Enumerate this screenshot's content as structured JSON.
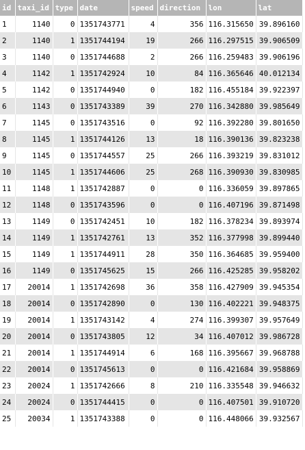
{
  "columns": [
    {
      "key": "id",
      "label": "id",
      "align": "left"
    },
    {
      "key": "taxi_id",
      "label": "taxi_id",
      "align": "right"
    },
    {
      "key": "type",
      "label": "type",
      "align": "right"
    },
    {
      "key": "date",
      "label": "date",
      "align": "left"
    },
    {
      "key": "speed",
      "label": "speed",
      "align": "right"
    },
    {
      "key": "direction",
      "label": "direction",
      "align": "right"
    },
    {
      "key": "lon",
      "label": "lon",
      "align": "right"
    },
    {
      "key": "lat",
      "label": "lat",
      "align": "right"
    }
  ],
  "rows": [
    [
      "1",
      "1140",
      "0",
      "1351743771",
      "4",
      "356",
      "116.315650",
      "39.896160"
    ],
    [
      "2",
      "1140",
      "1",
      "1351744194",
      "19",
      "266",
      "116.297515",
      "39.906509"
    ],
    [
      "3",
      "1140",
      "0",
      "1351744688",
      "2",
      "266",
      "116.259483",
      "39.906196"
    ],
    [
      "4",
      "1142",
      "1",
      "1351742924",
      "10",
      "84",
      "116.365646",
      "40.012134"
    ],
    [
      "5",
      "1142",
      "0",
      "1351744940",
      "0",
      "182",
      "116.455184",
      "39.922397"
    ],
    [
      "6",
      "1143",
      "0",
      "1351743389",
      "39",
      "270",
      "116.342880",
      "39.985649"
    ],
    [
      "7",
      "1145",
      "0",
      "1351743516",
      "0",
      "92",
      "116.392280",
      "39.801650"
    ],
    [
      "8",
      "1145",
      "1",
      "1351744126",
      "13",
      "18",
      "116.390136",
      "39.823238"
    ],
    [
      "9",
      "1145",
      "0",
      "1351744557",
      "25",
      "266",
      "116.393219",
      "39.831012"
    ],
    [
      "10",
      "1145",
      "1",
      "1351744606",
      "25",
      "268",
      "116.390930",
      "39.830985"
    ],
    [
      "11",
      "1148",
      "1",
      "1351742887",
      "0",
      "0",
      "116.336059",
      "39.897865"
    ],
    [
      "12",
      "1148",
      "0",
      "1351743596",
      "0",
      "0",
      "116.407196",
      "39.871498"
    ],
    [
      "13",
      "1149",
      "0",
      "1351742451",
      "10",
      "182",
      "116.378234",
      "39.893974"
    ],
    [
      "14",
      "1149",
      "1",
      "1351742761",
      "13",
      "352",
      "116.377998",
      "39.899440"
    ],
    [
      "15",
      "1149",
      "1",
      "1351744911",
      "28",
      "350",
      "116.364685",
      "39.959400"
    ],
    [
      "16",
      "1149",
      "0",
      "1351745625",
      "15",
      "266",
      "116.425285",
      "39.958202"
    ],
    [
      "17",
      "20014",
      "1",
      "1351742698",
      "36",
      "358",
      "116.427909",
      "39.945354"
    ],
    [
      "18",
      "20014",
      "0",
      "1351742890",
      "0",
      "130",
      "116.402221",
      "39.948375"
    ],
    [
      "19",
      "20014",
      "1",
      "1351743142",
      "4",
      "274",
      "116.399307",
      "39.957649"
    ],
    [
      "20",
      "20014",
      "0",
      "1351743805",
      "12",
      "34",
      "116.407012",
      "39.986728"
    ],
    [
      "21",
      "20014",
      "1",
      "1351744914",
      "6",
      "168",
      "116.395667",
      "39.968788"
    ],
    [
      "22",
      "20014",
      "0",
      "1351745613",
      "0",
      "0",
      "116.421684",
      "39.958869"
    ],
    [
      "23",
      "20024",
      "1",
      "1351742666",
      "8",
      "210",
      "116.335548",
      "39.946632"
    ],
    [
      "24",
      "20024",
      "0",
      "1351744415",
      "0",
      "0",
      "116.407501",
      "39.910720"
    ],
    [
      "25",
      "20034",
      "1",
      "1351743388",
      "0",
      "0",
      "116.448066",
      "39.932567"
    ]
  ],
  "colors": {
    "header_bg": "#b5b5b5",
    "header_text": "#ffffff",
    "row_even_bg": "#e5e5e5",
    "row_odd_bg": "#ffffff"
  }
}
